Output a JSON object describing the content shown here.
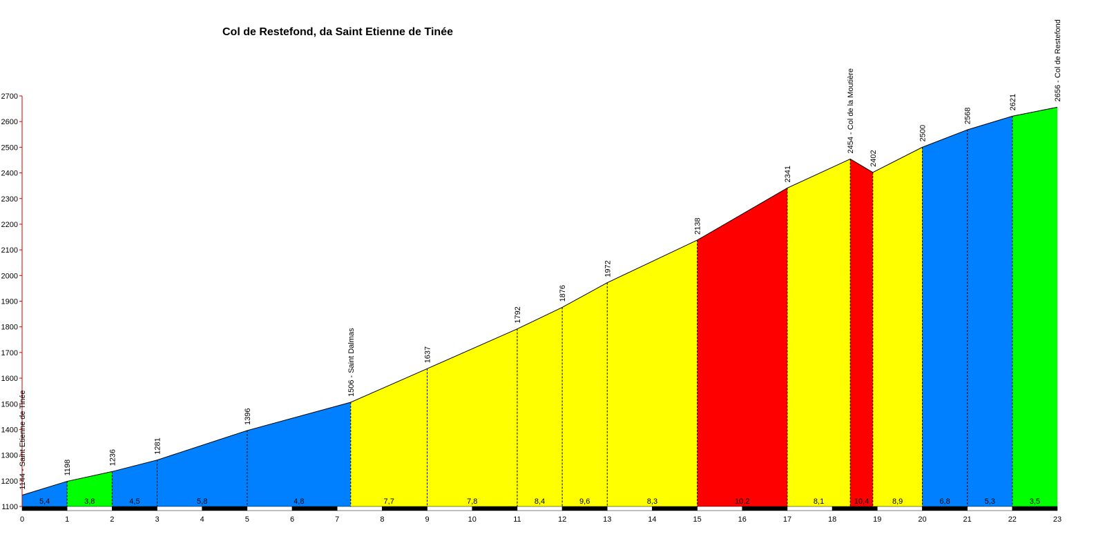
{
  "chart_data": {
    "type": "area",
    "title": "Col de Restefond, da Saint Etienne de Tinée",
    "xlim": [
      0,
      23
    ],
    "ylim": [
      1100,
      2700
    ],
    "x_ticks": [
      0,
      1,
      2,
      3,
      4,
      5,
      6,
      7,
      8,
      9,
      10,
      11,
      12,
      13,
      14,
      15,
      16,
      17,
      18,
      19,
      20,
      21,
      22,
      23
    ],
    "y_ticks": [
      1100,
      1200,
      1300,
      1400,
      1500,
      1600,
      1700,
      1800,
      1900,
      2000,
      2100,
      2200,
      2300,
      2400,
      2500,
      2600,
      2700
    ],
    "points": [
      {
        "x": 0,
        "y": 1144,
        "label": "1144 - Saint Etienne de Tinée"
      },
      {
        "x": 1,
        "y": 1198,
        "label": "1198"
      },
      {
        "x": 2,
        "y": 1236,
        "label": "1236"
      },
      {
        "x": 3,
        "y": 1281,
        "label": "1281"
      },
      {
        "x": 5,
        "y": 1396,
        "label": "1396"
      },
      {
        "x": 7.3,
        "y": 1506,
        "label": "1506 - Saint Dalmas"
      },
      {
        "x": 9,
        "y": 1637,
        "label": "1637"
      },
      {
        "x": 11,
        "y": 1792,
        "label": "1792"
      },
      {
        "x": 12,
        "y": 1876,
        "label": "1876"
      },
      {
        "x": 13,
        "y": 1972,
        "label": "1972"
      },
      {
        "x": 15,
        "y": 2138,
        "label": "2138"
      },
      {
        "x": 17,
        "y": 2341,
        "label": "2341"
      },
      {
        "x": 18.4,
        "y": 2454,
        "label": "2454 - Col de la Moutière"
      },
      {
        "x": 18.9,
        "y": 2402,
        "label": "2402"
      },
      {
        "x": 20,
        "y": 2500,
        "label": "2500"
      },
      {
        "x": 21,
        "y": 2568,
        "label": "2568"
      },
      {
        "x": 22,
        "y": 2621,
        "label": "2621"
      },
      {
        "x": 23,
        "y": 2656,
        "label": "2656 - Col de Restefond"
      }
    ],
    "segments": [
      {
        "start": 0,
        "end": 1,
        "gradient": "5,4",
        "color": "#0080ff"
      },
      {
        "start": 1,
        "end": 2,
        "gradient": "3,8",
        "color": "#00ff00"
      },
      {
        "start": 2,
        "end": 3,
        "gradient": "4,5",
        "color": "#0080ff"
      },
      {
        "start": 3,
        "end": 5,
        "gradient": "5,8",
        "color": "#0080ff"
      },
      {
        "start": 5,
        "end": 7.3,
        "gradient": "4,8",
        "color": "#0080ff"
      },
      {
        "start": 7.3,
        "end": 9,
        "gradient": "7,7",
        "color": "#ffff00"
      },
      {
        "start": 9,
        "end": 11,
        "gradient": "7,8",
        "color": "#ffff00"
      },
      {
        "start": 11,
        "end": 12,
        "gradient": "8,4",
        "color": "#ffff00"
      },
      {
        "start": 12,
        "end": 13,
        "gradient": "9,6",
        "color": "#ffff00"
      },
      {
        "start": 13,
        "end": 15,
        "gradient": "8,3",
        "color": "#ffff00"
      },
      {
        "start": 15,
        "end": 17,
        "gradient": "10,2",
        "color": "#ff0000"
      },
      {
        "start": 17,
        "end": 18.4,
        "gradient": "8,1",
        "color": "#ffff00"
      },
      {
        "start": 18.4,
        "end": 18.9,
        "gradient": "10,4",
        "color": "#ff0000"
      },
      {
        "start": 18.9,
        "end": 20,
        "gradient": "8,9",
        "color": "#ffff00"
      },
      {
        "start": 20,
        "end": 21,
        "gradient": "6,8",
        "color": "#0080ff"
      },
      {
        "start": 21,
        "end": 22,
        "gradient": "5,3",
        "color": "#0080ff"
      },
      {
        "start": 22,
        "end": 23,
        "gradient": "3,5",
        "color": "#00ff00"
      }
    ]
  }
}
